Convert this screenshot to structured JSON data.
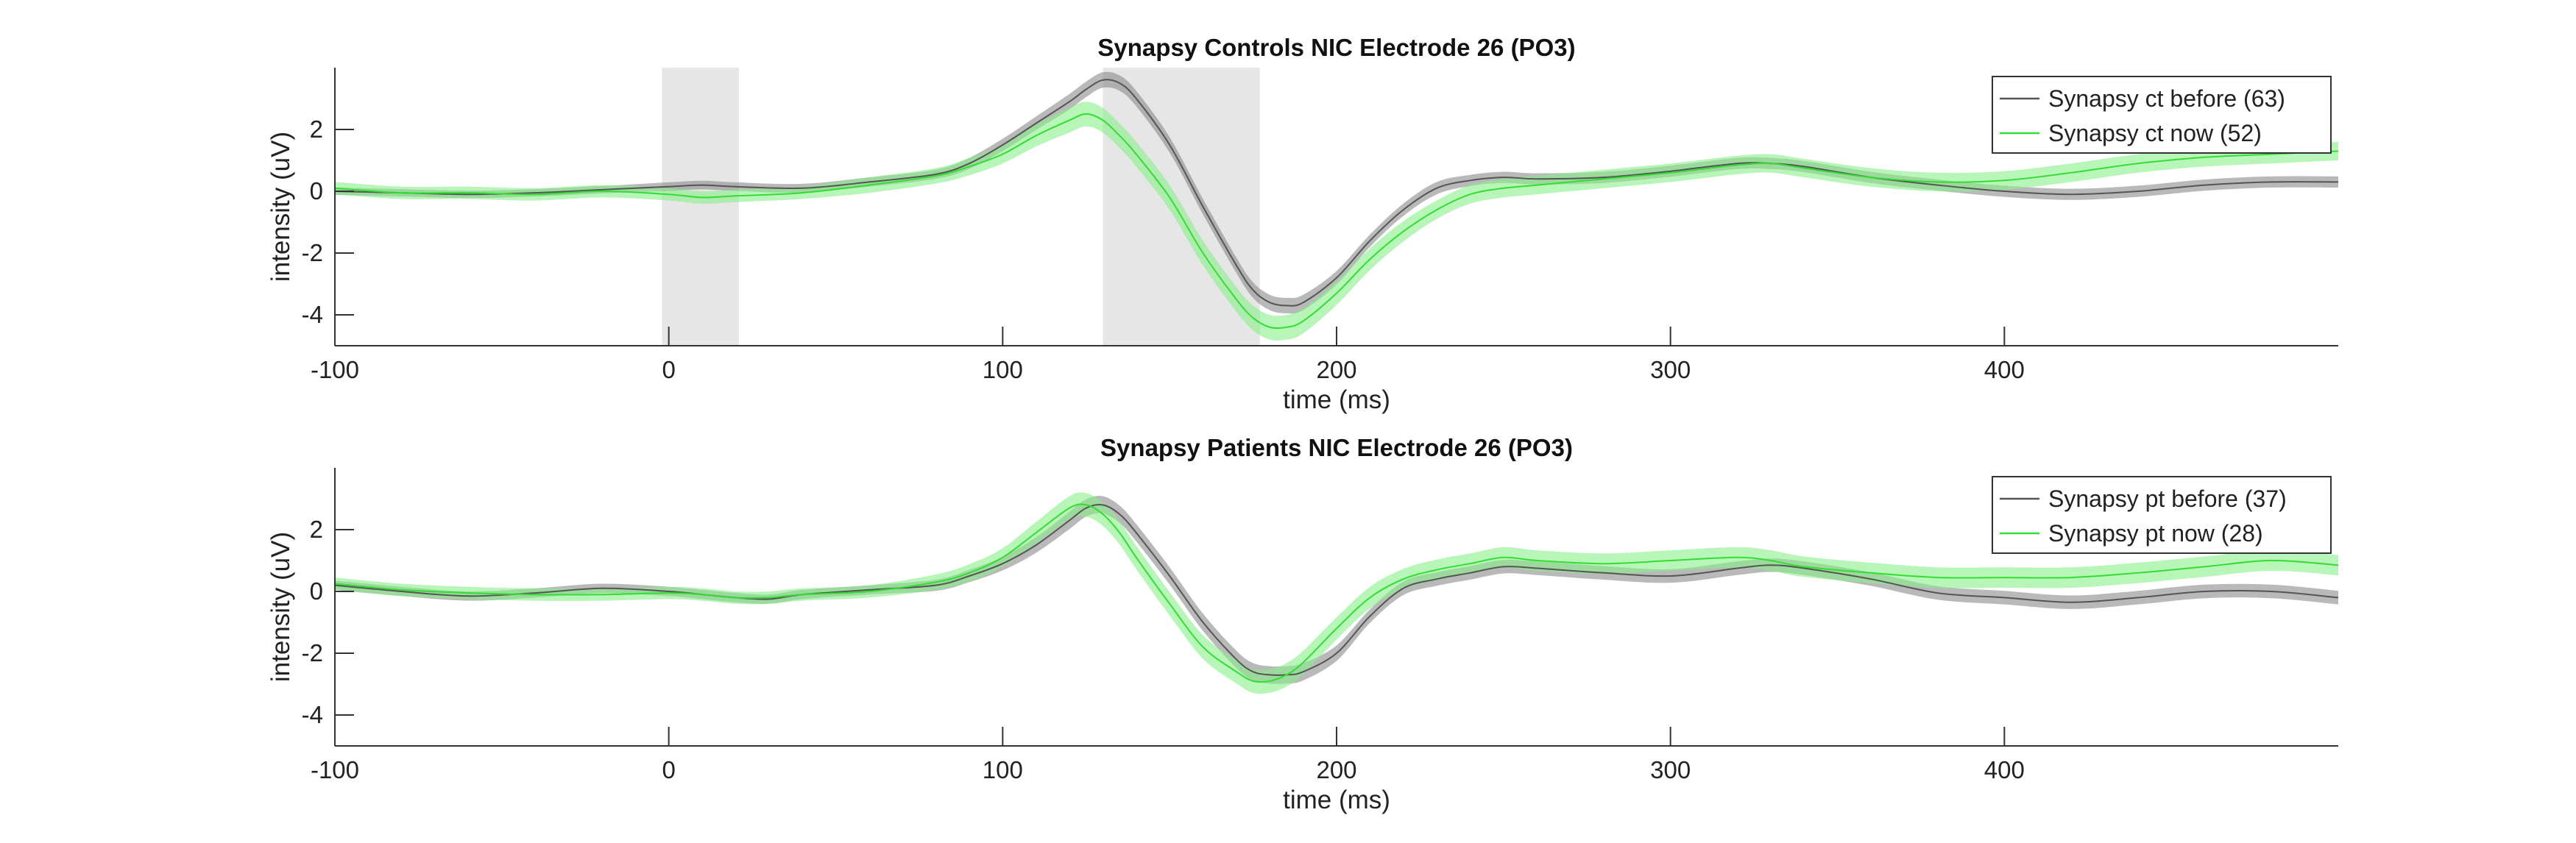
{
  "chart_data": [
    {
      "type": "line",
      "title": "Synapsy Controls NIC Electrode 26 (PO3)",
      "xlabel": "time (ms)",
      "ylabel": "intensity (uV)",
      "xlim": [
        -100,
        500
      ],
      "ylim": [
        -5,
        4
      ],
      "xticks": [
        -100,
        0,
        100,
        200,
        300,
        400
      ],
      "yticks": [
        -4,
        -2,
        0,
        2
      ],
      "legend_position": "top-right",
      "shaded_regions": [
        [
          -2,
          21
        ],
        [
          130,
          177
        ]
      ],
      "x": [
        -100,
        -80,
        -60,
        -40,
        -20,
        0,
        10,
        20,
        40,
        60,
        80,
        90,
        100,
        110,
        120,
        125,
        130,
        135,
        140,
        150,
        160,
        170,
        175,
        180,
        185,
        190,
        200,
        210,
        220,
        230,
        240,
        250,
        260,
        280,
        300,
        320,
        330,
        340,
        360,
        380,
        400,
        420,
        440,
        460,
        480,
        500
      ],
      "series": [
        {
          "name": "Synapsy ct before (63)",
          "color": "#555555",
          "band_color": "#8a8a8a",
          "values": [
            0.0,
            -0.05,
            -0.1,
            -0.05,
            0.05,
            0.15,
            0.2,
            0.15,
            0.1,
            0.3,
            0.55,
            0.9,
            1.5,
            2.2,
            2.9,
            3.3,
            3.6,
            3.5,
            3.0,
            1.5,
            -0.5,
            -2.4,
            -3.2,
            -3.6,
            -3.7,
            -3.6,
            -2.8,
            -1.6,
            -0.6,
            0.1,
            0.35,
            0.45,
            0.4,
            0.45,
            0.65,
            0.9,
            0.9,
            0.8,
            0.45,
            0.2,
            0.0,
            -0.1,
            0.0,
            0.2,
            0.3,
            0.3
          ],
          "error": [
            0.12,
            0.12,
            0.12,
            0.12,
            0.12,
            0.14,
            0.14,
            0.14,
            0.14,
            0.15,
            0.15,
            0.18,
            0.2,
            0.22,
            0.25,
            0.25,
            0.25,
            0.25,
            0.25,
            0.25,
            0.25,
            0.25,
            0.25,
            0.25,
            0.25,
            0.25,
            0.22,
            0.2,
            0.2,
            0.2,
            0.18,
            0.18,
            0.18,
            0.18,
            0.18,
            0.18,
            0.18,
            0.18,
            0.18,
            0.18,
            0.18,
            0.18,
            0.18,
            0.18,
            0.18,
            0.18
          ]
        },
        {
          "name": "Synapsy ct now (52)",
          "color": "#33dd33",
          "band_color": "#88ee88",
          "values": [
            0.1,
            -0.05,
            -0.05,
            -0.1,
            0.0,
            -0.1,
            -0.2,
            -0.15,
            -0.05,
            0.2,
            0.5,
            0.8,
            1.2,
            1.8,
            2.3,
            2.5,
            2.3,
            1.8,
            1.2,
            -0.2,
            -2.0,
            -3.5,
            -4.1,
            -4.4,
            -4.4,
            -4.2,
            -3.3,
            -2.2,
            -1.3,
            -0.6,
            -0.1,
            0.1,
            0.2,
            0.4,
            0.6,
            0.85,
            0.9,
            0.75,
            0.45,
            0.3,
            0.35,
            0.6,
            0.9,
            1.1,
            1.2,
            1.3
          ],
          "error": [
            0.2,
            0.2,
            0.2,
            0.2,
            0.2,
            0.2,
            0.2,
            0.2,
            0.2,
            0.25,
            0.25,
            0.28,
            0.3,
            0.35,
            0.4,
            0.4,
            0.4,
            0.4,
            0.4,
            0.4,
            0.4,
            0.4,
            0.4,
            0.4,
            0.4,
            0.4,
            0.38,
            0.35,
            0.33,
            0.3,
            0.3,
            0.3,
            0.3,
            0.3,
            0.3,
            0.3,
            0.3,
            0.3,
            0.3,
            0.3,
            0.3,
            0.3,
            0.3,
            0.3,
            0.3,
            0.3
          ]
        }
      ]
    },
    {
      "type": "line",
      "title": "Synapsy Patients NIC Electrode 26 (PO3)",
      "xlabel": "time (ms)",
      "ylabel": "intensity (uV)",
      "xlim": [
        -100,
        500
      ],
      "ylim": [
        -5,
        4
      ],
      "xticks": [
        -100,
        0,
        100,
        200,
        300,
        400
      ],
      "yticks": [
        -4,
        -2,
        0,
        2
      ],
      "legend_position": "top-right",
      "shaded_regions": [],
      "x": [
        -100,
        -80,
        -60,
        -40,
        -20,
        0,
        10,
        20,
        30,
        40,
        60,
        80,
        90,
        100,
        110,
        120,
        125,
        130,
        135,
        140,
        150,
        160,
        170,
        175,
        180,
        185,
        190,
        200,
        210,
        220,
        230,
        240,
        250,
        260,
        280,
        300,
        320,
        330,
        340,
        360,
        380,
        400,
        420,
        440,
        460,
        480,
        500
      ],
      "series": [
        {
          "name": "Synapsy pt before (37)",
          "color": "#555555",
          "band_color": "#8a8a8a",
          "values": [
            0.2,
            0.0,
            -0.15,
            -0.05,
            0.1,
            0.0,
            -0.1,
            -0.2,
            -0.25,
            -0.1,
            0.05,
            0.2,
            0.5,
            0.9,
            1.5,
            2.3,
            2.7,
            2.8,
            2.5,
            1.9,
            0.5,
            -1.0,
            -2.2,
            -2.6,
            -2.7,
            -2.7,
            -2.6,
            -2.0,
            -0.8,
            0.1,
            0.4,
            0.6,
            0.8,
            0.75,
            0.6,
            0.5,
            0.75,
            0.85,
            0.75,
            0.4,
            -0.05,
            -0.2,
            -0.35,
            -0.2,
            0.0,
            0.0,
            -0.2
          ],
          "error": [
            0.15,
            0.15,
            0.15,
            0.15,
            0.15,
            0.15,
            0.15,
            0.15,
            0.15,
            0.15,
            0.15,
            0.18,
            0.2,
            0.22,
            0.25,
            0.28,
            0.28,
            0.28,
            0.28,
            0.28,
            0.28,
            0.28,
            0.28,
            0.28,
            0.28,
            0.28,
            0.28,
            0.25,
            0.22,
            0.22,
            0.22,
            0.22,
            0.22,
            0.22,
            0.22,
            0.22,
            0.22,
            0.22,
            0.22,
            0.22,
            0.22,
            0.22,
            0.22,
            0.22,
            0.22,
            0.22,
            0.22
          ]
        },
        {
          "name": "Synapsy pt now (28)",
          "color": "#33dd33",
          "band_color": "#88ee88",
          "values": [
            0.25,
            0.05,
            -0.05,
            -0.1,
            -0.1,
            -0.05,
            -0.1,
            -0.2,
            -0.2,
            -0.1,
            0.0,
            0.3,
            0.6,
            1.1,
            1.9,
            2.7,
            2.8,
            2.5,
            1.9,
            1.1,
            -0.4,
            -1.8,
            -2.6,
            -2.9,
            -2.9,
            -2.7,
            -2.3,
            -1.2,
            -0.2,
            0.4,
            0.7,
            0.9,
            1.1,
            1.0,
            0.9,
            1.0,
            1.1,
            1.0,
            0.8,
            0.6,
            0.45,
            0.45,
            0.45,
            0.6,
            0.8,
            1.0,
            0.85
          ],
          "error": [
            0.2,
            0.2,
            0.2,
            0.2,
            0.2,
            0.2,
            0.2,
            0.2,
            0.2,
            0.2,
            0.2,
            0.25,
            0.28,
            0.3,
            0.35,
            0.38,
            0.38,
            0.38,
            0.38,
            0.38,
            0.38,
            0.38,
            0.38,
            0.38,
            0.38,
            0.38,
            0.38,
            0.36,
            0.35,
            0.33,
            0.33,
            0.33,
            0.33,
            0.33,
            0.33,
            0.33,
            0.33,
            0.33,
            0.33,
            0.33,
            0.33,
            0.33,
            0.33,
            0.33,
            0.33,
            0.33,
            0.33
          ]
        }
      ]
    }
  ]
}
